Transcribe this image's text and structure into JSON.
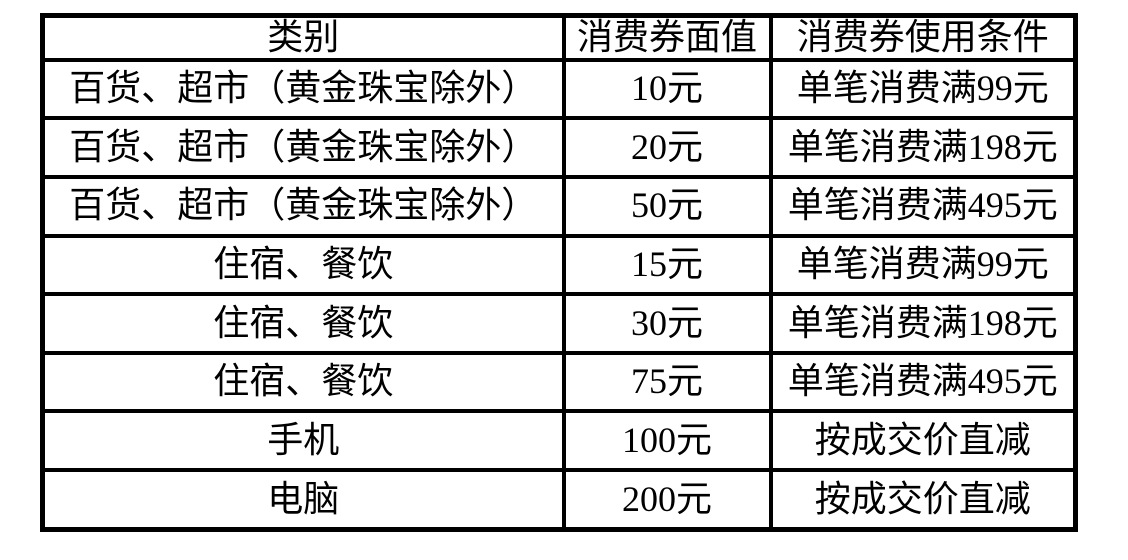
{
  "table": {
    "title_semantic": "consumption-voucher-table",
    "border_color": "#000000",
    "background_color": "#ffffff",
    "text_color": "#000000",
    "headers": [
      "类别",
      "消费券面值",
      "消费券使用条件"
    ],
    "rows": [
      [
        "百货、超市（黄金珠宝除外）",
        "10元",
        "单笔消费满99元"
      ],
      [
        "百货、超市（黄金珠宝除外）",
        "20元",
        "单笔消费满198元"
      ],
      [
        "百货、超市（黄金珠宝除外）",
        "50元",
        "单笔消费满495元"
      ],
      [
        "住宿、餐饮",
        "15元",
        "单笔消费满99元"
      ],
      [
        "住宿、餐饮",
        "30元",
        "单笔消费满198元"
      ],
      [
        "住宿、餐饮",
        "75元",
        "单笔消费满495元"
      ],
      [
        "手机",
        "100元",
        "按成交价直减"
      ],
      [
        "电脑",
        "200元",
        "按成交价直减"
      ]
    ]
  }
}
